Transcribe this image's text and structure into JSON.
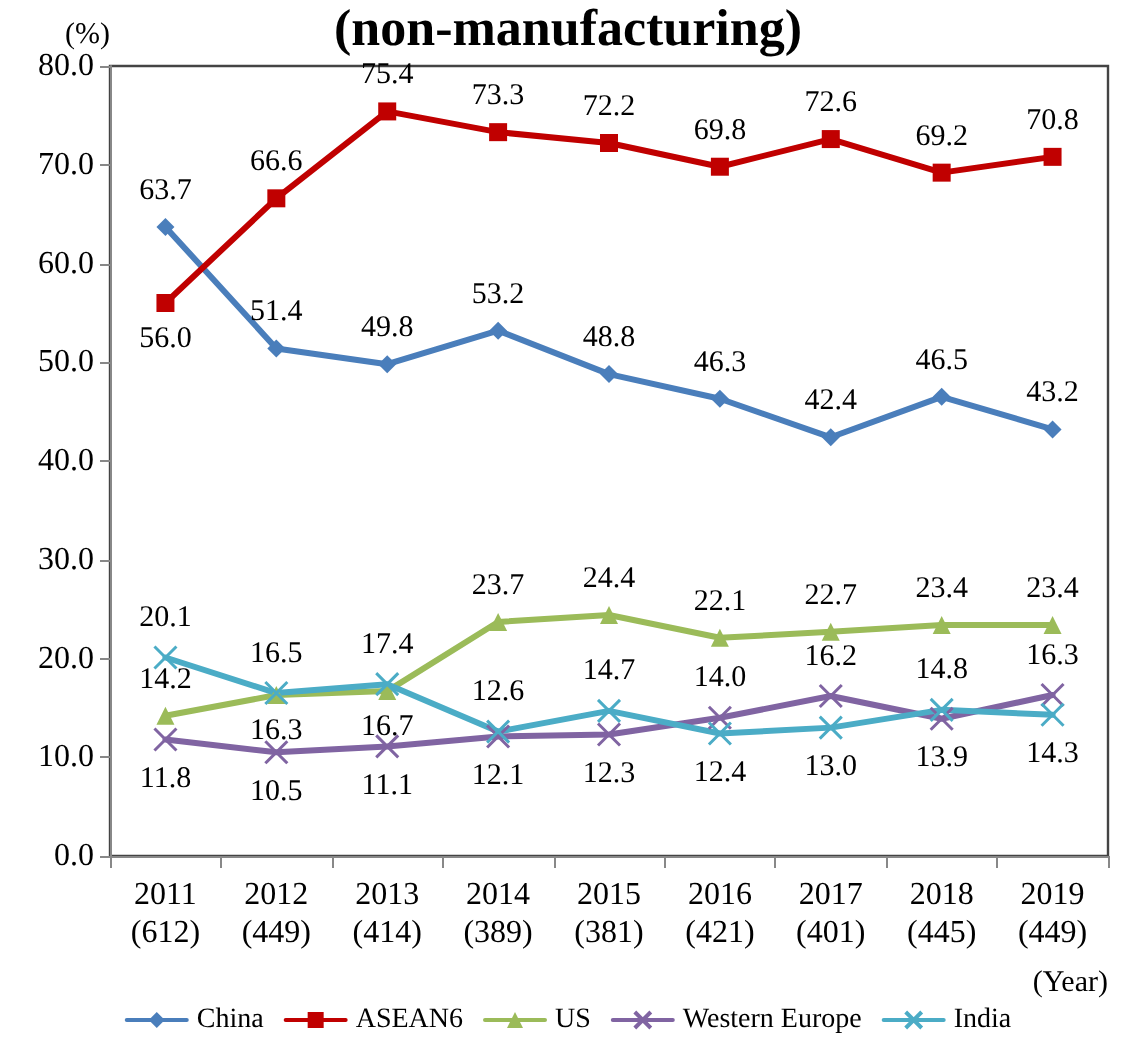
{
  "chart_data": {
    "type": "line",
    "title": "(non-manufacturing)",
    "ylabel": "(%)",
    "xlabel": "(Year)",
    "categories": [
      "2011\n(612)",
      "2012\n(449)",
      "2013\n(414)",
      "2014\n(389)",
      "2015\n(381)",
      "2016\n(421)",
      "2017\n(401)",
      "2018\n(445)",
      "2019\n(449)"
    ],
    "series": [
      {
        "name": "China",
        "color": "#4a7ebb",
        "marker": "diamond",
        "values": [
          63.7,
          51.4,
          49.8,
          53.2,
          48.8,
          46.3,
          42.4,
          46.5,
          43.2
        ],
        "value_labels": [
          "63.7",
          "51.4",
          "49.8",
          "53.2",
          "48.8",
          "46.3",
          "42.4",
          "46.5",
          "43.2"
        ]
      },
      {
        "name": "ASEAN6",
        "color": "#c00000",
        "marker": "square",
        "values": [
          56.0,
          66.6,
          75.4,
          73.3,
          72.2,
          69.8,
          72.6,
          69.2,
          70.8
        ],
        "value_labels": [
          "56.0",
          "66.6",
          "75.4",
          "73.3",
          "72.2",
          "69.8",
          "72.6",
          "69.2",
          "70.8"
        ]
      },
      {
        "name": "US",
        "color": "#9bbb59",
        "marker": "triangle",
        "values": [
          14.2,
          16.3,
          16.7,
          23.7,
          24.4,
          22.1,
          22.7,
          23.4,
          23.4
        ],
        "value_labels": [
          "14.2",
          "16.3",
          "16.7",
          "23.7",
          "24.4",
          "22.1",
          "22.7",
          "23.4",
          "23.4"
        ]
      },
      {
        "name": "Western Europe",
        "color": "#8064a2",
        "marker": "cross",
        "values": [
          11.8,
          10.5,
          11.1,
          12.1,
          12.3,
          14.0,
          16.2,
          13.9,
          16.3
        ],
        "value_labels": [
          "11.8",
          "10.5",
          "11.1",
          "12.1",
          "12.3",
          "14.0",
          "16.2",
          "13.9",
          "16.3"
        ]
      },
      {
        "name": "India",
        "color": "#4bacc6",
        "marker": "cross",
        "values": [
          20.1,
          16.5,
          17.4,
          12.6,
          14.7,
          12.4,
          13.0,
          14.8,
          14.3
        ],
        "value_labels": [
          "20.1",
          "16.5",
          "17.4",
          "12.6",
          "14.7",
          "12.4",
          "13.0",
          "14.8",
          "14.3"
        ]
      }
    ],
    "ylim": [
      0,
      80
    ],
    "yticks": [
      {
        "value": 0,
        "label": "0.0"
      },
      {
        "value": 10,
        "label": "10.0"
      },
      {
        "value": 20,
        "label": "20.0"
      },
      {
        "value": 30,
        "label": "30.0"
      },
      {
        "value": 40,
        "label": "40.0"
      },
      {
        "value": 50,
        "label": "50.0"
      },
      {
        "value": 60,
        "label": "60.0"
      },
      {
        "value": 70,
        "label": "70.0"
      },
      {
        "value": 80,
        "label": "80.0"
      }
    ],
    "grid": false,
    "legend": "bottom",
    "line_style": "solid"
  }
}
